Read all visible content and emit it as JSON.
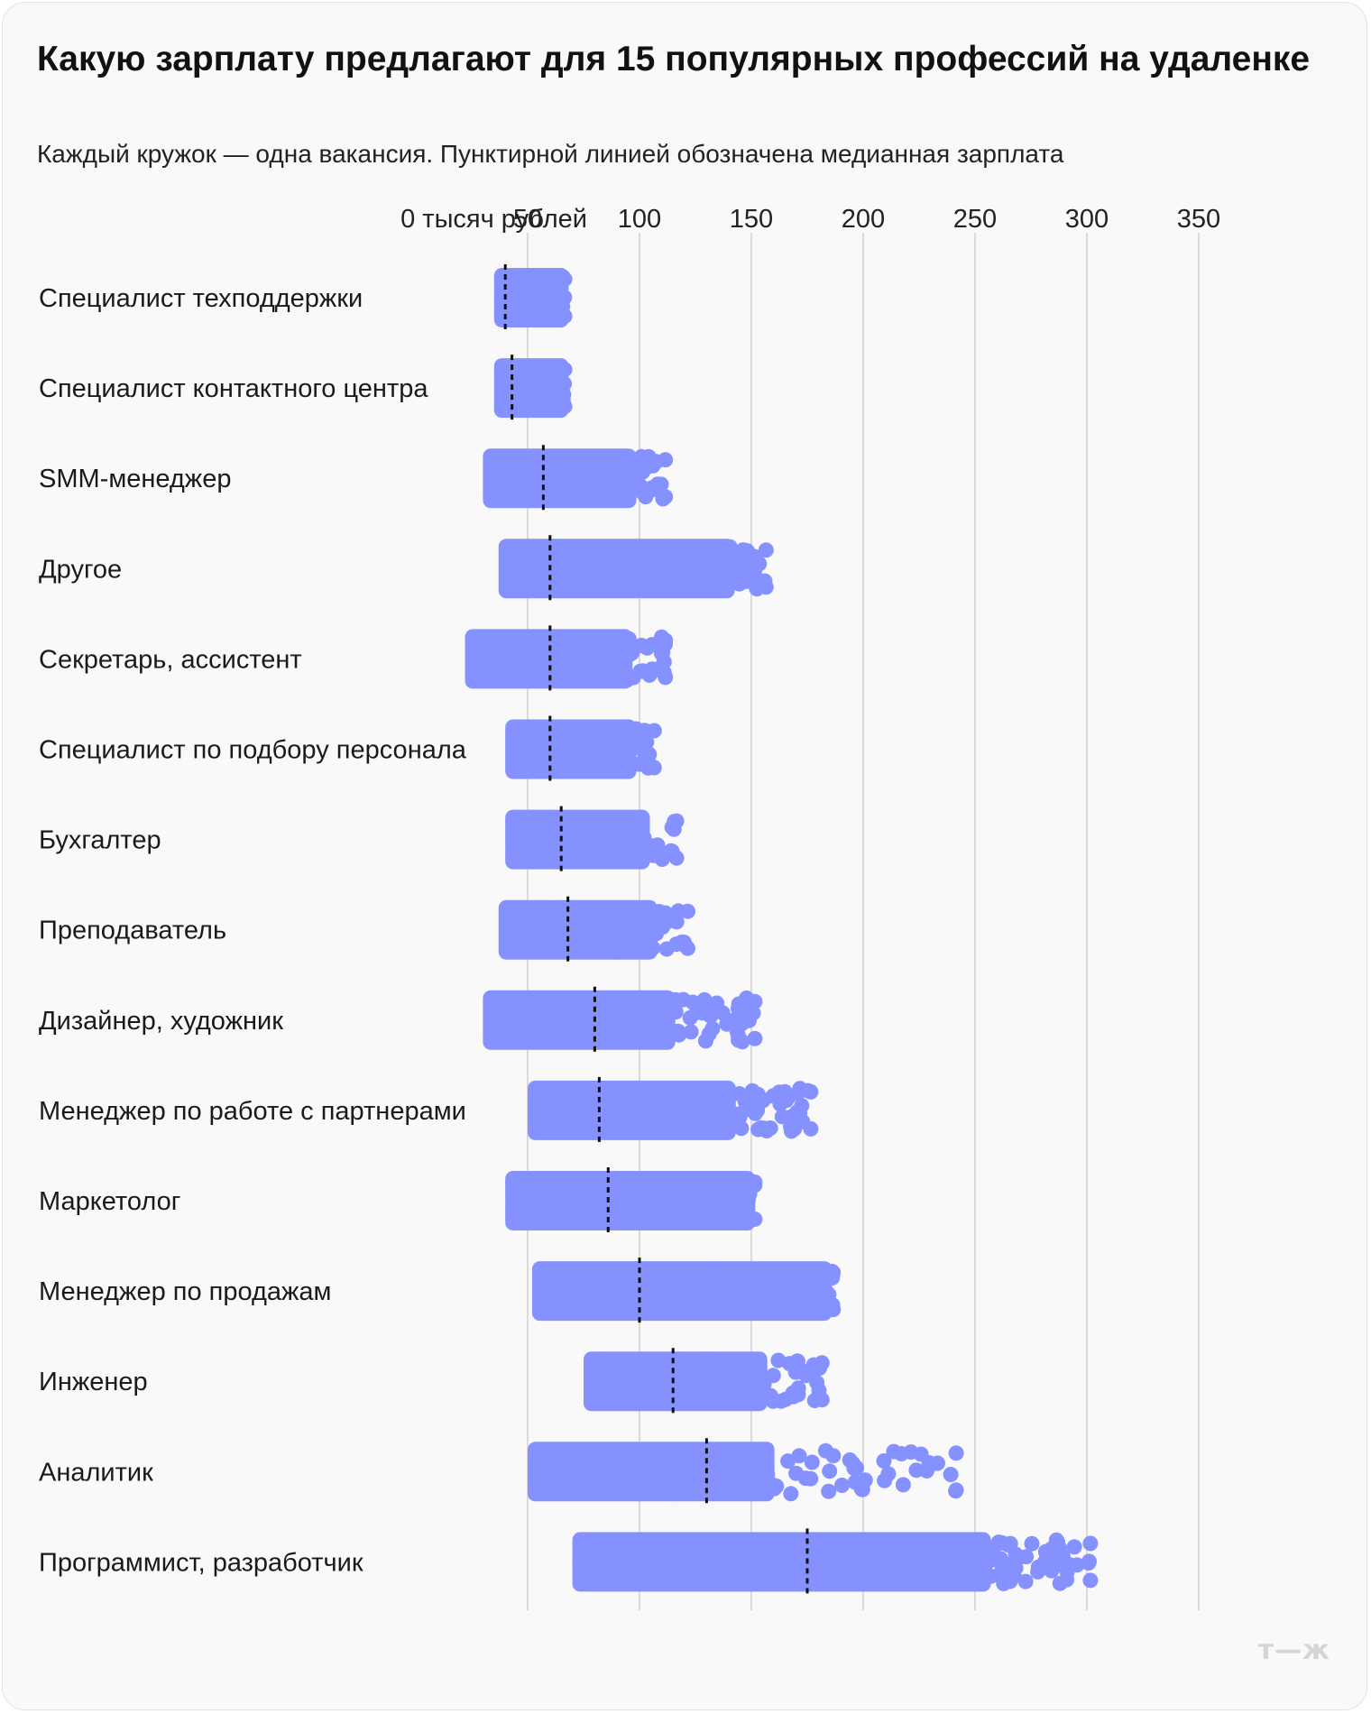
{
  "title": "Какую зарплату предлагают для 15 популярных профессий на удаленке",
  "subtitle": "Каждый кружок — одна вакансия. Пунктирной линией обозначена медианная зарплата",
  "logo": "т—ж",
  "colors": {
    "dot": "#8591ff",
    "median": "#111111",
    "grid": "#dadada",
    "background": "#f9f9f9"
  },
  "chart_data": {
    "type": "scatter",
    "title": "Какую зарплату предлагают для 15 популярных профессий на удаленке",
    "xlabel": "тысяч рублей",
    "xlim": [
      0,
      350
    ],
    "x_ticks": [
      0,
      50,
      100,
      150,
      200,
      250,
      300,
      350
    ],
    "x_tick_labels": [
      "0 тысяч рублей",
      "50",
      "100",
      "150",
      "200",
      "250",
      "300",
      "350"
    ],
    "grid": true,
    "categories": [
      {
        "label": "Специалист техподдержки",
        "min": 35,
        "max": 70,
        "median": 40,
        "count": 140,
        "spread": 0.1
      },
      {
        "label": "Специалист контактного центра",
        "min": 35,
        "max": 70,
        "median": 43,
        "count": 140,
        "spread": 0.1
      },
      {
        "label": "SMM-менеджер",
        "min": 30,
        "max": 115,
        "median": 57,
        "count": 120,
        "spread": 0.35
      },
      {
        "label": "Другое",
        "min": 37,
        "max": 160,
        "median": 60,
        "count": 200,
        "spread": 0.25
      },
      {
        "label": "Секретарь, ассистент",
        "min": 22,
        "max": 115,
        "median": 60,
        "count": 150,
        "spread": 0.35
      },
      {
        "label": "Специалист по подбору персонала",
        "min": 40,
        "max": 110,
        "median": 60,
        "count": 120,
        "spread": 0.3
      },
      {
        "label": "Бухгалтер",
        "min": 40,
        "max": 120,
        "median": 65,
        "count": 120,
        "spread": 0.35
      },
      {
        "label": "Преподаватель",
        "min": 37,
        "max": 125,
        "median": 68,
        "count": 130,
        "spread": 0.35
      },
      {
        "label": "Дизайнер, художник",
        "min": 30,
        "max": 155,
        "median": 80,
        "count": 110,
        "spread": 0.55
      },
      {
        "label": "Менеджер по работе с партнерами",
        "min": 50,
        "max": 180,
        "median": 82,
        "count": 130,
        "spread": 0.5
      },
      {
        "label": "Маркетолог",
        "min": 40,
        "max": 155,
        "median": 86,
        "count": 220,
        "spread": 0.05
      },
      {
        "label": "Менеджер по продажам",
        "min": 52,
        "max": 190,
        "median": 100,
        "count": 280,
        "spread": 0.05
      },
      {
        "label": "Инженер",
        "min": 75,
        "max": 185,
        "median": 115,
        "count": 120,
        "spread": 0.45
      },
      {
        "label": "Аналитик",
        "min": 50,
        "max": 245,
        "median": 130,
        "count": 110,
        "spread": 0.75
      },
      {
        "label": "Программист, разработчик",
        "min": 70,
        "max": 305,
        "median": 175,
        "count": 260,
        "spread": 0.35
      }
    ]
  }
}
